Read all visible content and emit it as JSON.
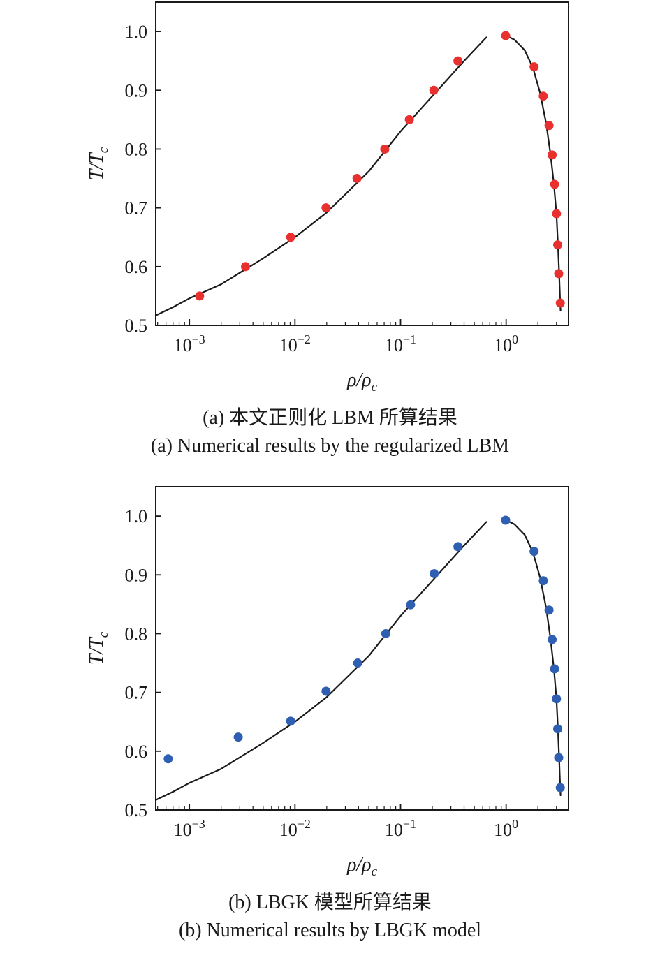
{
  "chart_data": [
    {
      "type": "scatter",
      "panel_label": "(a)",
      "caption_cn": "(a) 本文正则化 LBM 所算结果",
      "caption_en": "(a) Numerical results by the regularized LBM",
      "xlabel": "ρ/ρc",
      "ylabel": "T/Tc",
      "x_scale": "log",
      "xlim": [
        0.00048,
        3.9
      ],
      "ylim": [
        0.5,
        1.05
      ],
      "x_ticks": [
        "10−3",
        "10−2",
        "10−1",
        "100"
      ],
      "x_tick_values": [
        0.001,
        0.01,
        0.1,
        1
      ],
      "y_ticks": [
        "0.5",
        "0.6",
        "0.7",
        "0.8",
        "0.9",
        "1.0"
      ],
      "y_tick_values": [
        0.5,
        0.6,
        0.7,
        0.8,
        0.9,
        1.0
      ],
      "marker_color": "#e8302e",
      "line_color": "#1a1a1a",
      "grid": false,
      "curve_gas": {
        "x": [
          0.00048,
          0.0007,
          0.001,
          0.002,
          0.005,
          0.01,
          0.02,
          0.05,
          0.1,
          0.2,
          0.4,
          0.65
        ],
        "y": [
          0.517,
          0.531,
          0.546,
          0.57,
          0.614,
          0.65,
          0.692,
          0.762,
          0.83,
          0.89,
          0.95,
          0.99
        ]
      },
      "curve_liquid": {
        "x": [
          1.0,
          1.2,
          1.5,
          1.8,
          2.1,
          2.4,
          2.65,
          2.85,
          3.0,
          3.1,
          3.18,
          3.24,
          3.28
        ],
        "y": [
          0.993,
          0.986,
          0.968,
          0.938,
          0.895,
          0.843,
          0.788,
          0.736,
          0.688,
          0.637,
          0.588,
          0.548,
          0.525
        ]
      },
      "points": {
        "x": [
          0.00125,
          0.0034,
          0.0091,
          0.0197,
          0.0387,
          0.0709,
          0.1212,
          0.2067,
          0.3497,
          0.99,
          1.84,
          2.25,
          2.55,
          2.73,
          2.88,
          3.0,
          3.08,
          3.15,
          3.26
        ],
        "y": [
          0.55,
          0.6,
          0.65,
          0.7,
          0.75,
          0.8,
          0.85,
          0.9,
          0.95,
          0.993,
          0.94,
          0.89,
          0.84,
          0.79,
          0.74,
          0.69,
          0.637,
          0.588,
          0.538
        ]
      }
    },
    {
      "type": "scatter",
      "panel_label": "(b)",
      "caption_cn": "(b) LBGK 模型所算结果",
      "caption_en": "(b) Numerical results by LBGK model",
      "xlabel": "ρ/ρc",
      "ylabel": "T/Tc",
      "x_scale": "log",
      "xlim": [
        0.00048,
        3.9
      ],
      "ylim": [
        0.5,
        1.05
      ],
      "x_ticks": [
        "10−3",
        "10−2",
        "10−1",
        "100"
      ],
      "x_tick_values": [
        0.001,
        0.01,
        0.1,
        1
      ],
      "y_ticks": [
        "0.5",
        "0.6",
        "0.7",
        "0.8",
        "0.9",
        "1.0"
      ],
      "y_tick_values": [
        0.5,
        0.6,
        0.7,
        0.8,
        0.9,
        1.0
      ],
      "marker_color": "#2f5fb2",
      "line_color": "#1a1a1a",
      "grid": false,
      "curve_gas": {
        "x": [
          0.00048,
          0.0007,
          0.001,
          0.002,
          0.005,
          0.01,
          0.02,
          0.05,
          0.1,
          0.2,
          0.4,
          0.65
        ],
        "y": [
          0.517,
          0.531,
          0.546,
          0.57,
          0.614,
          0.65,
          0.692,
          0.762,
          0.83,
          0.89,
          0.95,
          0.99
        ]
      },
      "curve_liquid": {
        "x": [
          1.0,
          1.2,
          1.5,
          1.8,
          2.1,
          2.4,
          2.65,
          2.85,
          3.0,
          3.1,
          3.18,
          3.24,
          3.28
        ],
        "y": [
          0.993,
          0.986,
          0.968,
          0.938,
          0.895,
          0.843,
          0.788,
          0.736,
          0.688,
          0.637,
          0.588,
          0.548,
          0.525
        ]
      },
      "points": {
        "x": [
          0.00063,
          0.0029,
          0.0091,
          0.0197,
          0.0393,
          0.0724,
          0.1245,
          0.2086,
          0.3497,
          0.99,
          1.84,
          2.25,
          2.55,
          2.73,
          2.88,
          3.0,
          3.08,
          3.15,
          3.26
        ],
        "y": [
          0.587,
          0.624,
          0.651,
          0.702,
          0.75,
          0.8,
          0.849,
          0.902,
          0.948,
          0.993,
          0.94,
          0.89,
          0.84,
          0.79,
          0.74,
          0.689,
          0.638,
          0.589,
          0.538
        ]
      }
    }
  ]
}
